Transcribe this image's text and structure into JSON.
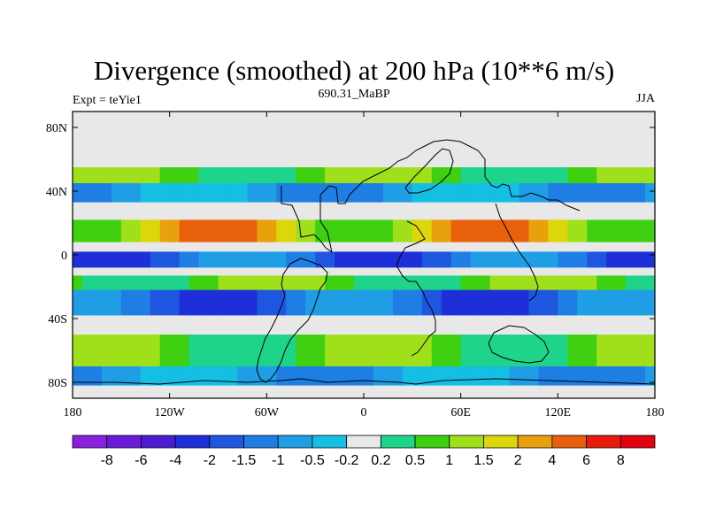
{
  "chart_data": {
    "type": "heatmap",
    "title": "Divergence (smoothed) at 200 hPa (10**6 m/s)",
    "subtitle_left": "Expt = teYie1",
    "subtitle_center": "690.31_MaBP",
    "subtitle_right": "JJA",
    "x_ticks": [
      "180",
      "120W",
      "60W",
      "0",
      "60E",
      "120E",
      "180"
    ],
    "x_tick_values": [
      -180,
      -120,
      -60,
      0,
      60,
      120,
      180
    ],
    "y_ticks": [
      "80N",
      "40N",
      "0",
      "40S",
      "80S"
    ],
    "y_tick_values": [
      80,
      40,
      0,
      -40,
      -80
    ],
    "xlim": [
      -180,
      180
    ],
    "ylim": [
      -90,
      90
    ],
    "colorbar": {
      "colors": [
        "#8b1fe0",
        "#6a1ad8",
        "#4b1cd4",
        "#1d2fd8",
        "#1f56e0",
        "#1f7ee4",
        "#1f9ee6",
        "#15bfe3",
        "#e8e8e8",
        "#1ed48a",
        "#3ed011",
        "#9fe01a",
        "#dcd60a",
        "#e8a00c",
        "#e8600b",
        "#e81a0b",
        "#e2000f"
      ],
      "labels": [
        "-8",
        "-6",
        "-4",
        "-2",
        "-1.5",
        "-1",
        "-0.5",
        "-0.2",
        "0.2",
        "0.5",
        "1",
        "1.5",
        "2",
        "4",
        "6",
        "8"
      ]
    },
    "bands": [
      {
        "lat_from": 90,
        "lat_to": 55,
        "level": "neutral"
      },
      {
        "lat_from": 55,
        "lat_to": 45,
        "level": "positive_weak"
      },
      {
        "lat_from": 45,
        "lat_to": 33,
        "level": "negative_weak"
      },
      {
        "lat_from": 33,
        "lat_to": 22,
        "level": "neutral"
      },
      {
        "lat_from": 22,
        "lat_to": 8,
        "level": "positive"
      },
      {
        "lat_from": 8,
        "lat_to": 2,
        "level": "neutral"
      },
      {
        "lat_from": 2,
        "lat_to": -8,
        "level": "negative"
      },
      {
        "lat_from": -8,
        "lat_to": -13,
        "level": "neutral"
      },
      {
        "lat_from": -13,
        "lat_to": -22,
        "level": "positive_weak"
      },
      {
        "lat_from": -22,
        "lat_to": -38,
        "level": "negative"
      },
      {
        "lat_from": -38,
        "lat_to": -50,
        "level": "neutral"
      },
      {
        "lat_from": -50,
        "lat_to": -70,
        "level": "positive_weak"
      },
      {
        "lat_from": -70,
        "lat_to": -82,
        "level": "negative_weak"
      },
      {
        "lat_from": -82,
        "lat_to": -90,
        "level": "neutral"
      }
    ]
  }
}
